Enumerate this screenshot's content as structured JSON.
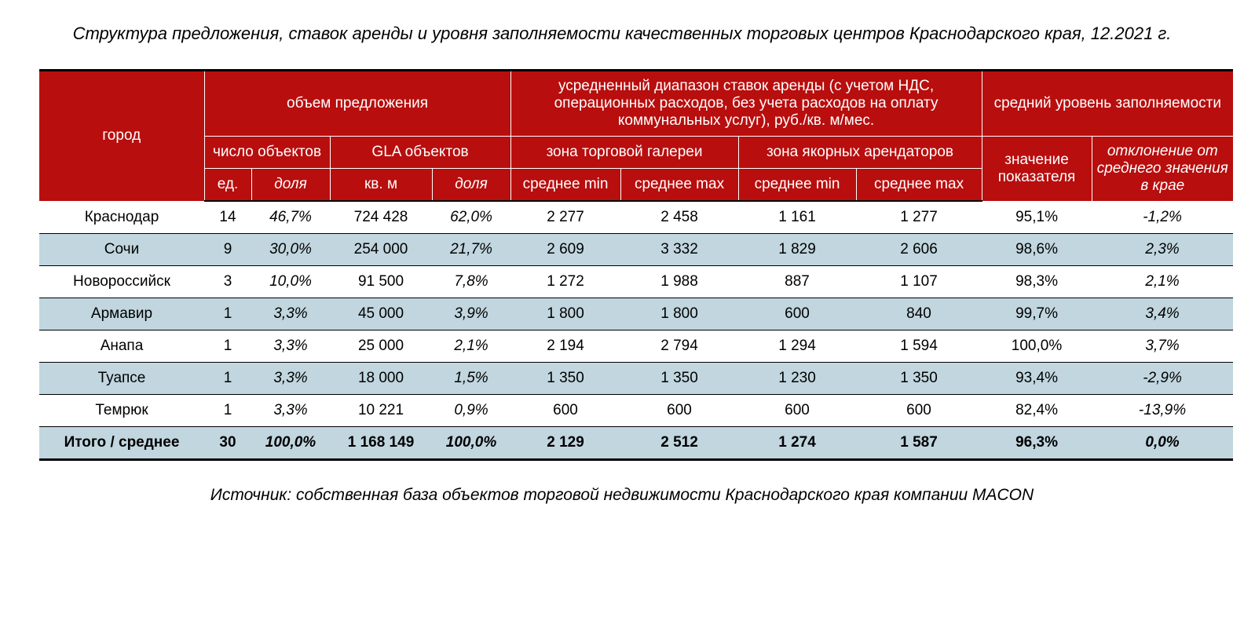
{
  "title": "Структура предложения, ставок аренды и уровня заполняемости качественных торговых центров Краснодарского края, 12.2021 г.",
  "source": "Источник: собственная база объектов торговой недвижимости Краснодарского края компании MACON",
  "colors": {
    "header_bg": "#b80e0e",
    "header_text": "#ffffff",
    "row_alt_bg": "#c1d6df",
    "border": "#000000",
    "page_bg": "#ffffff",
    "text": "#000000"
  },
  "header": {
    "city": "город",
    "supply": "объем предложения",
    "rates": "усредненный диапазон ставок аренды (с учетом НДС, операционных расходов, без учета расходов на оплату коммунальных услуг), руб./кв. м/мес.",
    "occupancy": "средний уровень заполняемости",
    "objects": "число объектов",
    "gla": "GLA объектов",
    "gallery": "зона торговой галереи",
    "anchor": "зона якорных арендаторов",
    "value": "значение показателя",
    "deviation": "отклонение от среднего значения в крае",
    "units": "ед.",
    "share": "доля",
    "sqm": "кв. м",
    "avg_min": "среднее min",
    "avg_max": "среднее max"
  },
  "rows": [
    {
      "city": "Краснодар",
      "n": "14",
      "nshare": "46,7%",
      "gla": "724 428",
      "glashare": "62,0%",
      "gmin": "2 277",
      "gmax": "2 458",
      "amin": "1 161",
      "amax": "1 277",
      "val": "95,1%",
      "dev": "-1,2%"
    },
    {
      "city": "Сочи",
      "n": "9",
      "nshare": "30,0%",
      "gla": "254 000",
      "glashare": "21,7%",
      "gmin": "2 609",
      "gmax": "3 332",
      "amin": "1 829",
      "amax": "2 606",
      "val": "98,6%",
      "dev": "2,3%"
    },
    {
      "city": "Новороссийск",
      "n": "3",
      "nshare": "10,0%",
      "gla": "91 500",
      "glashare": "7,8%",
      "gmin": "1 272",
      "gmax": "1 988",
      "amin": "887",
      "amax": "1 107",
      "val": "98,3%",
      "dev": "2,1%"
    },
    {
      "city": "Армавир",
      "n": "1",
      "nshare": "3,3%",
      "gla": "45 000",
      "glashare": "3,9%",
      "gmin": "1 800",
      "gmax": "1 800",
      "amin": "600",
      "amax": "840",
      "val": "99,7%",
      "dev": "3,4%"
    },
    {
      "city": "Анапа",
      "n": "1",
      "nshare": "3,3%",
      "gla": "25 000",
      "glashare": "2,1%",
      "gmin": "2 194",
      "gmax": "2 794",
      "amin": "1 294",
      "amax": "1 594",
      "val": "100,0%",
      "dev": "3,7%"
    },
    {
      "city": "Туапсе",
      "n": "1",
      "nshare": "3,3%",
      "gla": "18 000",
      "glashare": "1,5%",
      "gmin": "1 350",
      "gmax": "1 350",
      "amin": "1 230",
      "amax": "1 350",
      "val": "93,4%",
      "dev": "-2,9%"
    },
    {
      "city": "Темрюк",
      "n": "1",
      "nshare": "3,3%",
      "gla": "10 221",
      "glashare": "0,9%",
      "gmin": "600",
      "gmax": "600",
      "amin": "600",
      "amax": "600",
      "val": "82,4%",
      "dev": "-13,9%"
    }
  ],
  "total": {
    "city": "Итого / среднее",
    "n": "30",
    "nshare": "100,0%",
    "gla": "1 168 149",
    "glashare": "100,0%",
    "gmin": "2 129",
    "gmax": "2 512",
    "amin": "1 274",
    "amax": "1 587",
    "val": "96,3%",
    "dev": "0,0%"
  }
}
